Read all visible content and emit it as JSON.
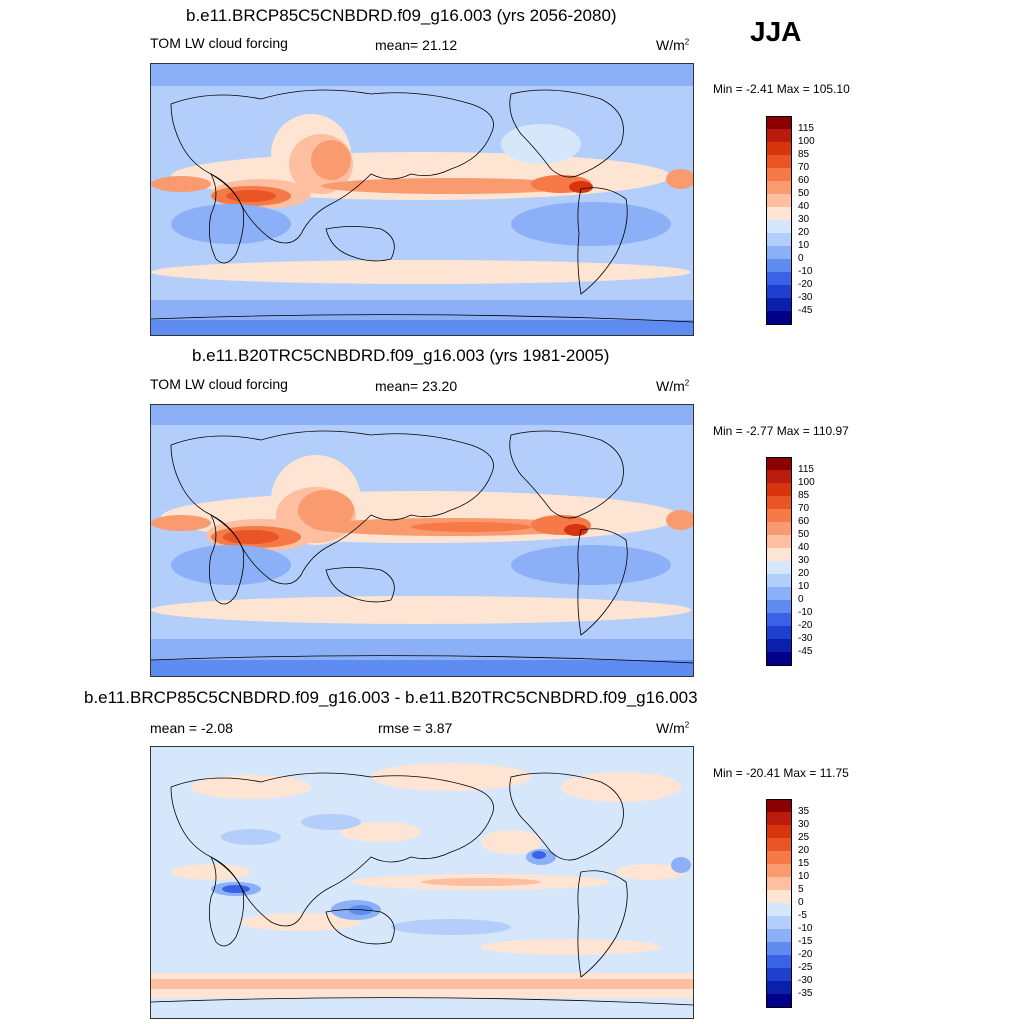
{
  "season": "JJA",
  "panels": [
    {
      "title": "b.e11.BRCP85C5CNBDRD.f09_g16.003 (yrs 2056-2080)",
      "left_label": "TOM LW cloud forcing",
      "center_label": "mean=  21.12",
      "units": "W/m",
      "units_sup": "2",
      "minmax": "Min =  -2.41 Max = 105.10",
      "levels": [
        "115",
        "100",
        "85",
        "70",
        "60",
        "50",
        "40",
        "30",
        "20",
        "10",
        "0",
        "-10",
        "-20",
        "-30",
        "-45"
      ]
    },
    {
      "title": "b.e11.B20TRC5CNBDRD.f09_g16.003 (yrs 1981-2005)",
      "left_label": "TOM LW cloud forcing",
      "center_label": "mean=  23.20",
      "units": "W/m",
      "units_sup": "2",
      "minmax": "Min =  -2.77 Max = 110.97",
      "levels": [
        "115",
        "100",
        "85",
        "70",
        "60",
        "50",
        "40",
        "30",
        "20",
        "10",
        "0",
        "-10",
        "-20",
        "-30",
        "-45"
      ]
    },
    {
      "title": "b.e11.BRCP85C5CNBDRD.f09_g16.003 - b.e11.B20TRC5CNBDRD.f09_g16.003",
      "left_label": "mean =  -2.08",
      "center_label": "rmse =   3.87",
      "units": "W/m",
      "units_sup": "2",
      "minmax": "Min = -20.41 Max =  11.75",
      "levels": [
        "35",
        "30",
        "25",
        "20",
        "15",
        "10",
        "5",
        "0",
        "-5",
        "-10",
        "-15",
        "-20",
        "-25",
        "-30",
        "-35"
      ]
    }
  ],
  "colors": {
    "scale": [
      "#8b0000",
      "#b91c0c",
      "#d8340e",
      "#ea5526",
      "#f57a48",
      "#f99a6f",
      "#fdbf9f",
      "#fee4d2",
      "#d7e7fb",
      "#b3cefa",
      "#8cb0f7",
      "#5f8cf1",
      "#3a62e6",
      "#1f3fd0",
      "#0a20ac",
      "#00008b"
    ],
    "diff_scale": [
      "#8b0000",
      "#b91c0c",
      "#d8340e",
      "#ea5526",
      "#f57a48",
      "#f99a6f",
      "#fdbf9f",
      "#fee4d2",
      "#d7e7fb",
      "#b3cefa",
      "#8cb0f7",
      "#5f8cf1",
      "#3a62e6",
      "#1f3fd0",
      "#0a20ac",
      "#00008b"
    ]
  }
}
